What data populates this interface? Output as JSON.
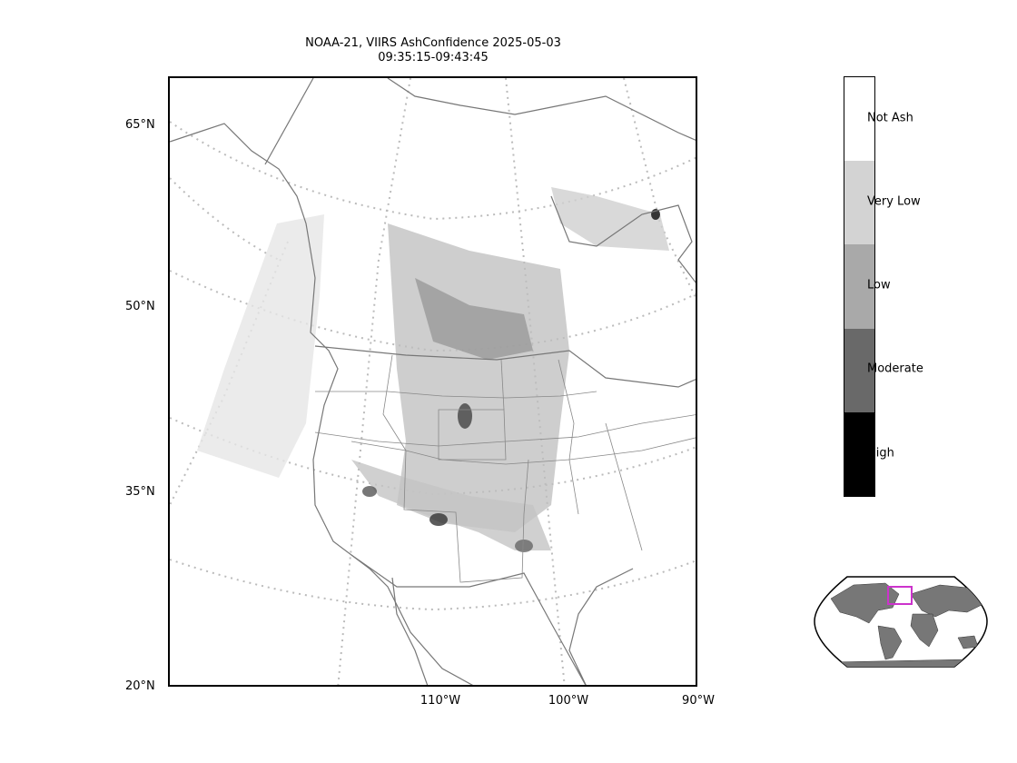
{
  "title": {
    "line1": "NOAA-21, VIIRS AshConfidence 2025-05-03",
    "line2": "09:35:15-09:43:45"
  },
  "axes": {
    "lat_labels": [
      "65°N",
      "50°N",
      "35°N",
      "20°N"
    ],
    "lon_labels": [
      "110°W",
      "100°W",
      "90°W"
    ]
  },
  "colorbar": {
    "categories": [
      {
        "label": "Not Ash",
        "color": "#ffffff"
      },
      {
        "label": "Very Low",
        "color": "#d3d3d3"
      },
      {
        "label": "Low",
        "color": "#a9a9a9"
      },
      {
        "label": "Moderate",
        "color": "#696969"
      },
      {
        "label": "High",
        "color": "#000000"
      }
    ]
  },
  "colors": {
    "coastline": "#777777",
    "graticule": "#bbbbbb",
    "inset_land": "#777777",
    "inset_box": "#cc33cc"
  }
}
